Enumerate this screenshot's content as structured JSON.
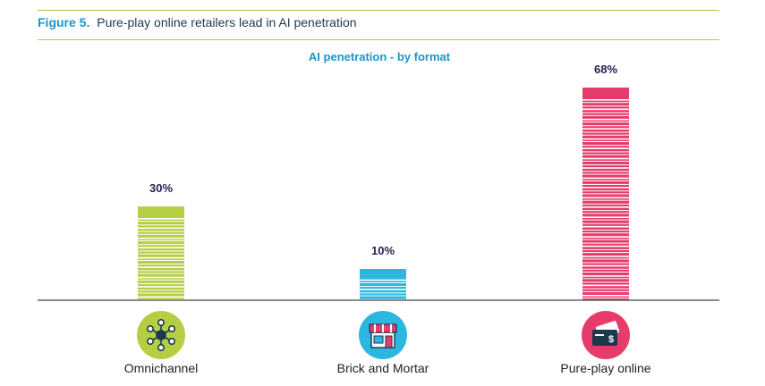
{
  "figure": {
    "number": "Figure 5.",
    "title": "Pure-play online retailers lead in AI penetration"
  },
  "chart_data": {
    "type": "bar",
    "title": "AI penetration - by format",
    "categories": [
      "Omnichannel",
      "Brick and Mortar",
      "Pure-play online"
    ],
    "values": [
      30,
      10,
      68
    ],
    "value_labels": [
      "30%",
      "10%",
      "68%"
    ],
    "unit": "%",
    "ylim": [
      0,
      68
    ],
    "grid": false,
    "legend": "none",
    "colors": [
      "#b5cf45",
      "#2bb7e0",
      "#e63c6c"
    ],
    "icons": [
      "network-hub-icon",
      "storefront-icon",
      "credit-card-icon"
    ]
  },
  "colors": {
    "rule": "#a8c94a",
    "figure_number": "#1a96c8",
    "chart_title": "#1a96c8",
    "value_label": "#2d1b4e",
    "axis": "#444444"
  }
}
